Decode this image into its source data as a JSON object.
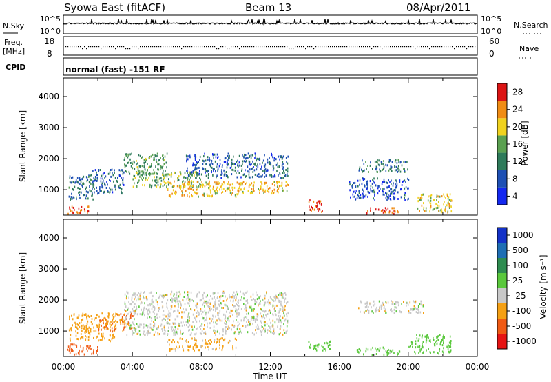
{
  "header": {
    "station": "Syowa East (fitACF)",
    "beam": "Beam 13",
    "date": "08/Apr/2011"
  },
  "strips": {
    "nsky_label": "N.Sky",
    "nsky_ticks": [
      "10^5",
      "10^0"
    ],
    "nsearch_label": "N.Search",
    "nsearch_ticks": [
      "10^5",
      "10^0"
    ],
    "freq_label_line1": "Freq.",
    "freq_label_line2": "[MHz]",
    "freq_ticks": [
      "18",
      "8"
    ],
    "nave_label": "Nave",
    "nave_ticks": [
      "60",
      "0"
    ],
    "cpid_label": "CPID",
    "cpid_text": "normal (fast) -151 RF"
  },
  "axes": {
    "ylabel": "Slant Range [km]",
    "xlabel": "Time UT",
    "y_ticks": [
      "1000",
      "2000",
      "3000",
      "4000"
    ],
    "x_ticks": [
      "00:00",
      "04:00",
      "08:00",
      "12:00",
      "16:00",
      "20:00",
      "00:00"
    ]
  },
  "power_colorbar": {
    "label": "Power [dB]",
    "ticks": [
      "4",
      "8",
      "12",
      "16",
      "20",
      "24",
      "28"
    ],
    "colors": [
      "#1428f0",
      "#1e50b4",
      "#2e7a5a",
      "#5aa050",
      "#f0d21e",
      "#f08c14",
      "#dc1414"
    ]
  },
  "velocity_colorbar": {
    "label": "Velocity [m s⁻¹]",
    "ticks": [
      "-1000",
      "-500",
      "-100",
      "-25",
      "25",
      "100",
      "500",
      "1000"
    ],
    "colors": [
      "#e61414",
      "#f05a14",
      "#f5a014",
      "#c8c8c8",
      "#5ac83c",
      "#2e8c50",
      "#1e6eb4",
      "#1432c8"
    ]
  },
  "chart_data": [
    {
      "type": "heatmap",
      "panel": "power",
      "title": "",
      "xlabel": "Time UT",
      "ylabel": "Slant Range [km]",
      "xlim": [
        0,
        24
      ],
      "ylim": [
        180,
        4600
      ],
      "colorbar": {
        "label": "Power [dB]",
        "range": [
          0,
          32
        ]
      },
      "regions": [
        {
          "t0": 0.2,
          "t1": 1.5,
          "r0": 250,
          "r1": 500,
          "value": 28
        },
        {
          "t0": 0.3,
          "t1": 1.8,
          "r0": 700,
          "r1": 1500,
          "value": 10
        },
        {
          "t0": 1.5,
          "t1": 3.5,
          "r0": 900,
          "r1": 1700,
          "value": 8
        },
        {
          "t0": 3.5,
          "t1": 6.0,
          "r0": 1500,
          "r1": 2200,
          "value": 14
        },
        {
          "t0": 4.0,
          "t1": 8.0,
          "r0": 1100,
          "r1": 1600,
          "value": 16
        },
        {
          "t0": 6.0,
          "t1": 10.5,
          "r0": 800,
          "r1": 1300,
          "value": 22
        },
        {
          "t0": 7.0,
          "t1": 13.0,
          "r0": 1400,
          "r1": 2200,
          "value": 8
        },
        {
          "t0": 10.0,
          "t1": 13.0,
          "r0": 900,
          "r1": 1300,
          "value": 22
        },
        {
          "t0": 14.2,
          "t1": 15.0,
          "r0": 300,
          "r1": 700,
          "value": 28
        },
        {
          "t0": 17.5,
          "t1": 19.5,
          "r0": 250,
          "r1": 450,
          "value": 28
        },
        {
          "t0": 16.5,
          "t1": 20.0,
          "r0": 700,
          "r1": 1400,
          "value": 6
        },
        {
          "t0": 17.0,
          "t1": 20.0,
          "r0": 1600,
          "r1": 2000,
          "value": 10
        },
        {
          "t0": 20.5,
          "t1": 22.5,
          "r0": 300,
          "r1": 900,
          "value": 20
        }
      ]
    },
    {
      "type": "heatmap",
      "panel": "velocity",
      "title": "",
      "xlabel": "Time UT",
      "ylabel": "Slant Range [km]",
      "xlim": [
        0,
        24
      ],
      "ylim": [
        180,
        4600
      ],
      "colorbar": {
        "label": "Velocity [m s⁻¹]",
        "range": [
          -1000,
          1000
        ]
      },
      "regions": [
        {
          "t0": 0.2,
          "t1": 2.0,
          "r0": 250,
          "r1": 600,
          "value": -500
        },
        {
          "t0": 0.3,
          "t1": 3.0,
          "r0": 700,
          "r1": 1600,
          "value": -150
        },
        {
          "t0": 2.0,
          "t1": 4.0,
          "r0": 1000,
          "r1": 1600,
          "value": -300
        },
        {
          "t0": 3.5,
          "t1": 13.0,
          "r0": 900,
          "r1": 2300,
          "value": 0
        },
        {
          "t0": 6.0,
          "t1": 10.0,
          "r0": 400,
          "r1": 800,
          "value": -100
        },
        {
          "t0": 14.0,
          "t1": 15.5,
          "r0": 400,
          "r1": 700,
          "value": 120
        },
        {
          "t0": 17.0,
          "t1": 19.5,
          "r0": 250,
          "r1": 500,
          "value": 110
        },
        {
          "t0": 17.0,
          "t1": 21.0,
          "r0": 1600,
          "r1": 2000,
          "value": 0
        },
        {
          "t0": 20.0,
          "t1": 22.5,
          "r0": 300,
          "r1": 900,
          "value": 200
        }
      ]
    }
  ]
}
